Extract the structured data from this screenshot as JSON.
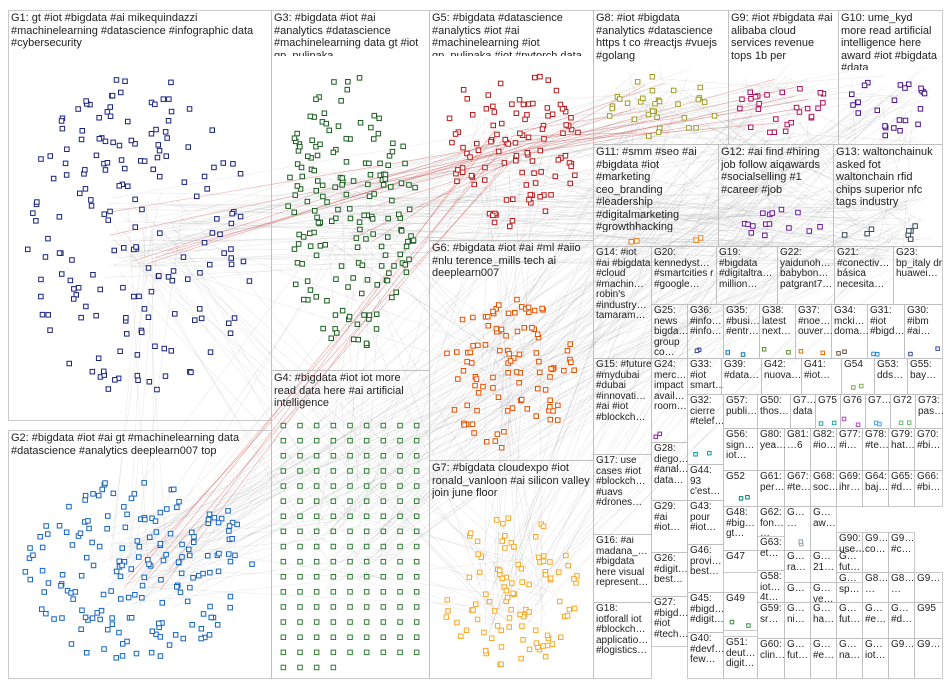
{
  "title": "",
  "groups": [
    {
      "id": "G1",
      "label": "G1: gt #iot #bigdata #ai mikequindazzi #machinelearning #datascience #infographic data #cybersecurity",
      "color": "#1a237e"
    },
    {
      "id": "G2",
      "label": "G2: #bigdata #iot #ai gt #machinelearning data #datascience #analytics deeplearn007 top",
      "color": "#1565c0"
    },
    {
      "id": "G3",
      "label": "G3: #bigdata #iot #ai #analytics #datascience #machinelearning data gt #iot gp_pulipaka",
      "color": "#1b5e20"
    },
    {
      "id": "G4",
      "label": "G4: #bigdata #iot iot more read data here #ai artificial intelligence",
      "color": "#2e7d32"
    },
    {
      "id": "G5",
      "label": "G5: #bigdata #datascience #analytics #iot #ai #machinelearning #iot gp_pulipaka #iot #pytorch data",
      "color": "#b71c1c"
    },
    {
      "id": "G6",
      "label": "G6: #bigdata #iot #ai #ml #aiio #nlu terence_mills tech ai deeplearn007",
      "color": "#e65100"
    },
    {
      "id": "G7",
      "label": "G7: #bigdata cloudexpo #iot ronald_vanloon #ai silicon valley join june floor",
      "color": "#f9a825"
    },
    {
      "id": "G8",
      "label": "G8: #iot #bigdata #analytics #datascience https t co #reactjs #vuejs #golang",
      "color": "#9e9d24"
    },
    {
      "id": "G9",
      "label": "G9: #iot #bigdata #ai alibaba cloud services revenue tops 1b per",
      "color": "#ad1457"
    },
    {
      "id": "G10",
      "label": "G10: ume_kyd more read artificial intelligence here award #iot #bigdata #data",
      "color": "#4a148c"
    },
    {
      "id": "G11",
      "label": "G11: #smm #seo #ai #bigdata #iot #marketing ceo_branding #leadership #digitalmarketing #growthhacking",
      "color": "#f57f17"
    },
    {
      "id": "G12",
      "label": "G12: #ai find #hiring job follow aiqawards #socialselling #1 #career #job",
      "color": "#6a1b9a"
    },
    {
      "id": "G13",
      "label": "G13: waltonchainuk asked fot waltonchain rfid chips superior nfc tags industry",
      "color": "#37474f"
    },
    {
      "id": "G14",
      "label": "G14: #iot #ai #bigdata #cloud #machin… robin's #industry… tamaram…",
      "color": "#00695c"
    },
    {
      "id": "G20",
      "label": "G20: kennedyst… #smartcities r #google…",
      "color": "#1976d2"
    },
    {
      "id": "G19",
      "label": "G19: #bigdata #digitaltra… million…",
      "color": "#455a64"
    },
    {
      "id": "G22",
      "label": "G22: yaidunoh… babybon… patgrant7…",
      "color": "#546e7a"
    },
    {
      "id": "G21",
      "label": "G21: #conectiv… básica necesita…",
      "color": "#c2185b"
    },
    {
      "id": "G23",
      "label": "G23: bp_italy dr huawei…",
      "color": "#7b1fa2"
    },
    {
      "id": "G25",
      "label": "G25: news bigda… group co…",
      "color": "#5d4037"
    },
    {
      "id": "G36",
      "label": "G36: #info… #info…",
      "color": "#303f9f"
    },
    {
      "id": "G35",
      "label": "G35: #busi… #entr…",
      "color": "#0277bd"
    },
    {
      "id": "G38",
      "label": "G38: latest next…",
      "color": "#558b2f"
    },
    {
      "id": "G37",
      "label": "G37: #noe… ouver…",
      "color": "#ef6c00"
    },
    {
      "id": "G34",
      "label": "G34: mcki… doma…",
      "color": "#6d4c41"
    },
    {
      "id": "G31",
      "label": "G31: #iot #bigd…",
      "color": "#1e88e5"
    },
    {
      "id": "G30",
      "label": "G30: #ibm #ai…",
      "color": "#3949ab"
    },
    {
      "id": "G15",
      "label": "G15: #future #mydubai #dubai #innovati… #ai #iot #blockch…",
      "color": "#00838f"
    },
    {
      "id": "G24",
      "label": "G24: merc… impact avail… room…",
      "color": "#8e24aa"
    },
    {
      "id": "G33",
      "label": "G33: #iot smart…",
      "color": "#43a047"
    },
    {
      "id": "G39",
      "label": "G39: #data…",
      "color": "#e53935"
    },
    {
      "id": "G42",
      "label": "G42: nuova…",
      "color": "#fb8c00"
    },
    {
      "id": "G41",
      "label": "G41: #iot…",
      "color": "#00acc1"
    },
    {
      "id": "G54",
      "label": "G54",
      "color": "#7cb342"
    },
    {
      "id": "G53",
      "label": "G53: dds…",
      "color": "#5e35b1"
    },
    {
      "id": "G55",
      "label": "G55: bay…",
      "color": "#d81b60"
    },
    {
      "id": "G28",
      "label": "G28: diego… #anal… data…",
      "color": "#3949ab"
    },
    {
      "id": "G32",
      "label": "G32: cierre #telef…",
      "color": "#0097a7"
    },
    {
      "id": "G57",
      "label": "G57: publi…",
      "color": "#689f38"
    },
    {
      "id": "G50",
      "label": "G50: thos…",
      "color": "#f4511e"
    },
    {
      "id": "G7x",
      "label": "G7… data",
      "color": "#8d6e63"
    },
    {
      "id": "G75",
      "label": "G75",
      "color": "#26a69a"
    },
    {
      "id": "G76",
      "label": "G76",
      "color": "#ab47bc"
    },
    {
      "id": "G7y",
      "label": "G7…",
      "color": "#42a5f5"
    },
    {
      "id": "G72",
      "label": "G72",
      "color": "#66bb6a"
    },
    {
      "id": "G73",
      "label": "G73: pas…",
      "color": "#ffa726"
    },
    {
      "id": "G17",
      "label": "G17: use cases #iot #blockch… #uavs #drones…",
      "color": "#0288d1"
    },
    {
      "id": "G44",
      "label": "G44: 93 c'est…",
      "color": "#7e57c2"
    },
    {
      "id": "G56",
      "label": "G56: sign… iot…",
      "color": "#ec407a"
    },
    {
      "id": "G80",
      "label": "G80: yea…",
      "color": "#26c6da"
    },
    {
      "id": "G81",
      "label": "G81: …6",
      "color": "#9ccc65"
    },
    {
      "id": "G82",
      "label": "G82: #io…",
      "color": "#5c6bc0"
    },
    {
      "id": "G77",
      "label": "G77: #i…",
      "color": "#ff7043"
    },
    {
      "id": "G78",
      "label": "G78: #te…",
      "color": "#8d6e63"
    },
    {
      "id": "G79",
      "label": "G79: hat…",
      "color": "#78909c"
    },
    {
      "id": "G70",
      "label": "G70: #bi…",
      "color": "#d4e157"
    },
    {
      "id": "G16",
      "label": "G16: #ai madana_… #bigdata here visual represent…",
      "color": "#1565c0"
    },
    {
      "id": "G52",
      "label": "G52",
      "color": "#00897b"
    },
    {
      "id": "G61",
      "label": "G61: per…",
      "color": "#6d4c41"
    },
    {
      "id": "G67",
      "label": "G67: #te…",
      "color": "#c0ca33"
    },
    {
      "id": "G68",
      "label": "G68: soc…",
      "color": "#7b1fa2"
    },
    {
      "id": "G69",
      "label": "G69: ihr…",
      "color": "#0097a7"
    },
    {
      "id": "G64",
      "label": "G64: baj…",
      "color": "#f06292"
    },
    {
      "id": "G65",
      "label": "G65: #d…",
      "color": "#4db6ac"
    },
    {
      "id": "G66",
      "label": "G66: #bi…",
      "color": "#ffb74d"
    },
    {
      "id": "G29",
      "label": "G29: #ai #iot…",
      "color": "#9575cd"
    },
    {
      "id": "G43",
      "label": "G43: pour #iot…",
      "color": "#4fc3f7"
    },
    {
      "id": "G62",
      "label": "G62: fon… …",
      "color": "#aed581"
    },
    {
      "id": "Ga",
      "label": "G… …",
      "color": "#90a4ae"
    },
    {
      "id": "Gb",
      "label": "G… aw…",
      "color": "#ba68c8"
    },
    {
      "id": "G48",
      "label": "G48: #big… gt…",
      "color": "#e57373"
    },
    {
      "id": "G63",
      "label": "G63: et…",
      "color": "#81c784"
    },
    {
      "id": "Gc",
      "label": "G… ra…",
      "color": "#64b5f6"
    },
    {
      "id": "Gd",
      "label": "G… 21…",
      "color": "#ffd54f"
    },
    {
      "id": "Ge",
      "label": "G… fut…",
      "color": "#a1887f"
    },
    {
      "id": "G90",
      "label": "G90: use…",
      "color": "#4dd0e1"
    },
    {
      "id": "G9x",
      "label": "G9… co…",
      "color": "#7986cb"
    },
    {
      "id": "G9y",
      "label": "G9… #c…",
      "color": "#f48fb1"
    },
    {
      "id": "G26",
      "label": "G26: #digit… best…",
      "color": "#26a69a"
    },
    {
      "id": "G46",
      "label": "G46: provi… best…",
      "color": "#ff8a65"
    },
    {
      "id": "G47",
      "label": "G47",
      "color": "#9fa8da"
    },
    {
      "id": "G58",
      "label": "G58: iot… 4t…",
      "color": "#c5e1a5"
    },
    {
      "id": "Gf",
      "label": "G… ",
      "color": "#b0bec5"
    },
    {
      "id": "Gg",
      "label": "G… ve…",
      "color": "#ce93d8"
    },
    {
      "id": "Gh",
      "label": "G… sp…",
      "color": "#80cbc4"
    },
    {
      "id": "G8x",
      "label": "G8… …",
      "color": "#ffcc80"
    },
    {
      "id": "G8y",
      "label": "G8… …",
      "color": "#bcaaa4"
    },
    {
      "id": "G27",
      "label": "G27: #bigd… #iot #tech…",
      "color": "#1976d2"
    },
    {
      "id": "G45",
      "label": "G45: #bigd… #digit…",
      "color": "#d32f2f"
    },
    {
      "id": "G49",
      "label": "G49",
      "color": "#388e3c"
    },
    {
      "id": "G59",
      "label": "G59: sr…",
      "color": "#f57c00"
    },
    {
      "id": "Gi",
      "label": "G… ni…",
      "color": "#0288d1"
    },
    {
      "id": "Gj",
      "label": "G… ha…",
      "color": "#7b1fa2"
    },
    {
      "id": "Gk",
      "label": "G… fut…",
      "color": "#c2185b"
    },
    {
      "id": "Gl",
      "label": "G… #e…",
      "color": "#00796b"
    },
    {
      "id": "Gm",
      "label": "G… #d…",
      "color": "#fbc02d"
    },
    {
      "id": "Gn",
      "label": "G… …",
      "color": "#5d4037"
    },
    {
      "id": "G9z",
      "label": "G9…",
      "color": "#455a64"
    },
    {
      "id": "G95",
      "label": "G95",
      "color": "#e64a19"
    },
    {
      "id": "G18",
      "label": "G18: iotforall iot #blockch… applicatio… #logistics…",
      "color": "#303f9f"
    },
    {
      "id": "G40",
      "label": "G40: #devf… few…",
      "color": "#689f38"
    },
    {
      "id": "G51",
      "label": "G51: deut… digit…",
      "color": "#0097a7"
    },
    {
      "id": "G60",
      "label": "G60: clin…",
      "color": "#ad1457"
    },
    {
      "id": "Go",
      "label": "G… fut…",
      "color": "#6a1b9a"
    },
    {
      "id": "Gp",
      "label": "G… #e…",
      "color": "#ef6c00"
    },
    {
      "id": "Gq",
      "label": "G… na…",
      "color": "#1b5e20"
    },
    {
      "id": "Gr",
      "label": "G… iot…",
      "color": "#4527a0"
    },
    {
      "id": "G9w",
      "label": "G9…",
      "color": "#00838f"
    },
    {
      "id": "G9v",
      "label": "G9…",
      "color": "#ad1457"
    }
  ]
}
